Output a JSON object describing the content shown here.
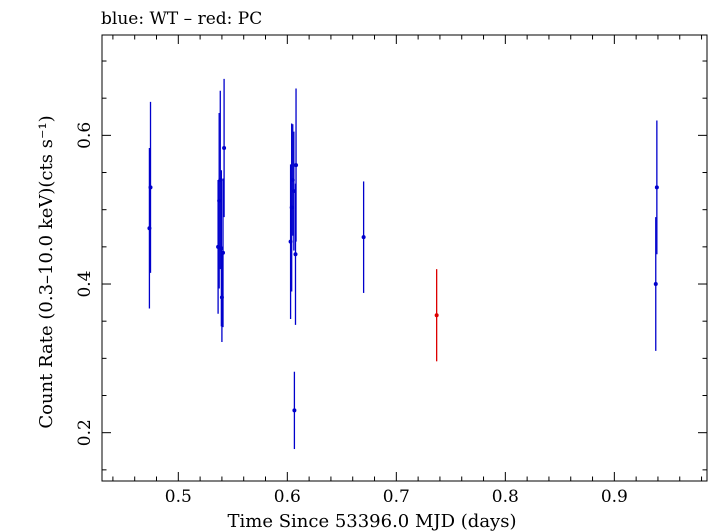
{
  "chart_data": {
    "type": "scatter",
    "title": "blue: WT – red: PC",
    "xlabel": "Time Since 53396.0 MJD (days)",
    "ylabel": "Count Rate (0.3–10.0 keV)(cts s⁻¹)",
    "xlim": [
      0.43,
      0.985
    ],
    "ylim": [
      0.135,
      0.735
    ],
    "xticks": [
      0.5,
      0.6,
      0.7,
      0.8,
      0.9
    ],
    "xtick_labels": [
      "0.5",
      "0.6",
      "0.7",
      "0.8",
      "0.9"
    ],
    "yticks": [
      0.2,
      0.4,
      0.6
    ],
    "ytick_labels": [
      "0.2",
      "0.4",
      "0.6"
    ],
    "grid": false,
    "series": [
      {
        "color": "#0000cc",
        "points": [
          {
            "x": 0.4735,
            "y": 0.475,
            "err": 0.108
          },
          {
            "x": 0.4745,
            "y": 0.53,
            "err": 0.115
          },
          {
            "x": 0.5365,
            "y": 0.45,
            "err": 0.09
          },
          {
            "x": 0.5375,
            "y": 0.512,
            "err": 0.118
          },
          {
            "x": 0.5385,
            "y": 0.54,
            "err": 0.12
          },
          {
            "x": 0.5395,
            "y": 0.448,
            "err": 0.105
          },
          {
            "x": 0.54,
            "y": 0.382,
            "err": 0.06
          },
          {
            "x": 0.541,
            "y": 0.442,
            "err": 0.1
          },
          {
            "x": 0.542,
            "y": 0.583,
            "err": 0.093
          },
          {
            "x": 0.603,
            "y": 0.457,
            "err": 0.104
          },
          {
            "x": 0.604,
            "y": 0.503,
            "err": 0.113
          },
          {
            "x": 0.605,
            "y": 0.54,
            "err": 0.075
          },
          {
            "x": 0.606,
            "y": 0.525,
            "err": 0.08
          },
          {
            "x": 0.6065,
            "y": 0.23,
            "err": 0.052
          },
          {
            "x": 0.6075,
            "y": 0.44,
            "err": 0.095
          },
          {
            "x": 0.608,
            "y": 0.56,
            "err": 0.103
          },
          {
            "x": 0.67,
            "y": 0.463,
            "err": 0.075
          },
          {
            "x": 0.938,
            "y": 0.4,
            "err": 0.09
          },
          {
            "x": 0.939,
            "y": 0.53,
            "err": 0.09
          }
        ]
      },
      {
        "color": "#dd0000",
        "points": [
          {
            "x": 0.737,
            "y": 0.358,
            "err": 0.062
          }
        ]
      }
    ]
  }
}
